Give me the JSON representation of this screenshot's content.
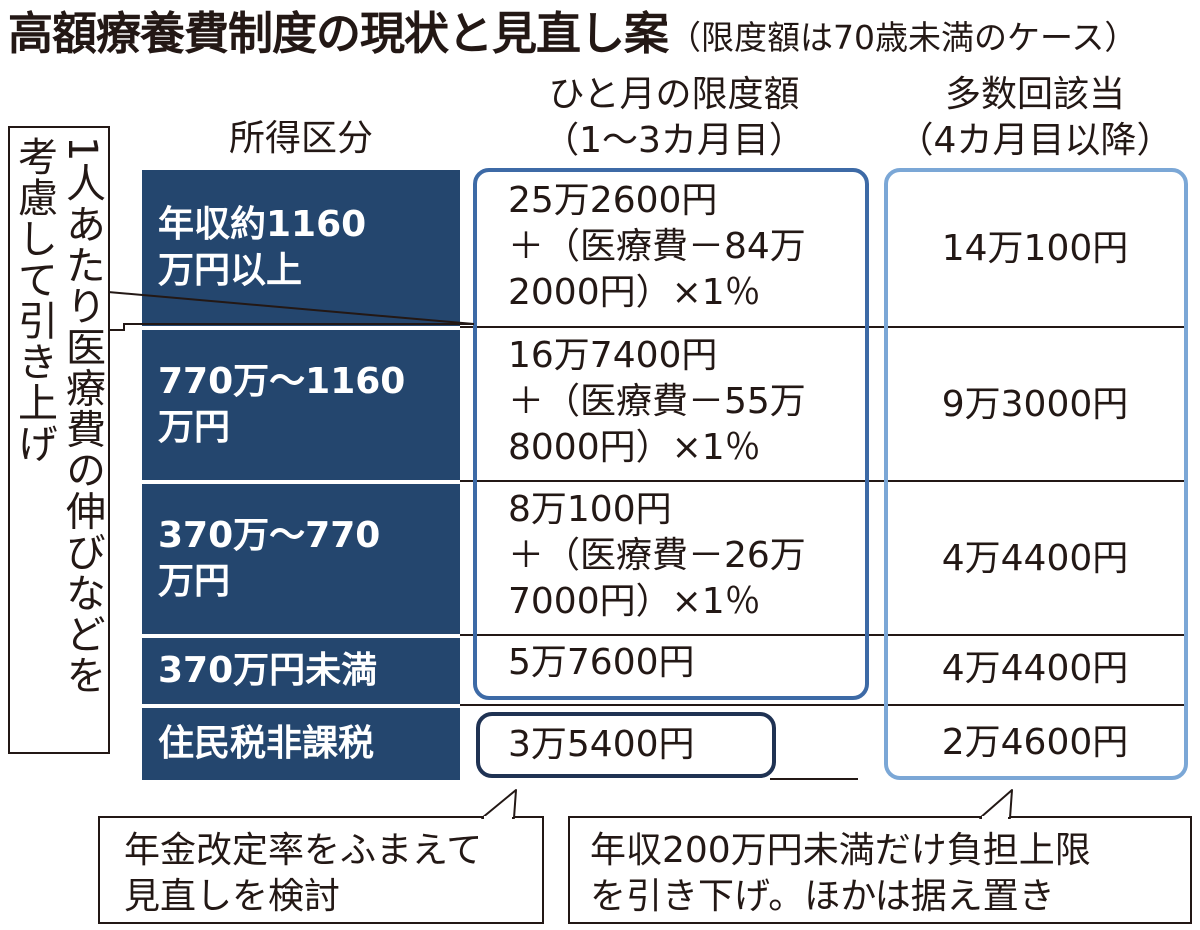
{
  "title": "高額療養費制度の現状と見直し案",
  "subtitle": "（限度額は70歳未満のケース）",
  "columns": {
    "income": "所得区分",
    "monthly": [
      "ひと月の限度額",
      "（1～3カ月目）"
    ],
    "repeat": [
      "多数回該当",
      "（4カ月目以降）"
    ]
  },
  "rows": [
    {
      "income": [
        "年収約1160",
        "万円以上"
      ],
      "monthly": [
        "25万2600円",
        "＋（医療費－84万",
        "2000円）×1％"
      ],
      "repeat": "14万100円"
    },
    {
      "income": [
        "770万～1160",
        "万円"
      ],
      "monthly": [
        "16万7400円",
        "＋（医療費－55万",
        "8000円）×1％"
      ],
      "repeat": "9万3000円"
    },
    {
      "income": [
        "370万～770",
        "万円"
      ],
      "monthly": [
        "8万100円",
        "＋（医療費－26万",
        "7000円）×1％"
      ],
      "repeat": "4万4400円"
    },
    {
      "income": [
        "370万円未満"
      ],
      "monthly": [
        "5万7600円"
      ],
      "repeat": "4万4400円"
    },
    {
      "income": [
        "住民税非課税"
      ],
      "monthly": [
        "3万5400円"
      ],
      "repeat": "2万4600円"
    }
  ],
  "side_note": [
    "1人あたり医療費の伸びなどを",
    "考慮して引き上げ"
  ],
  "callouts": {
    "left": [
      "年金改定率をふまえて",
      "見直しを検討"
    ],
    "right": [
      "年収200万円未満だけ負担上限",
      "を引き下げ。ほかは据え置き"
    ]
  },
  "colors": {
    "row_header": "#24466e",
    "box_dark": "#3d6aa6",
    "box_light": "#7ba7d6",
    "box_navy": "#1f3253"
  }
}
